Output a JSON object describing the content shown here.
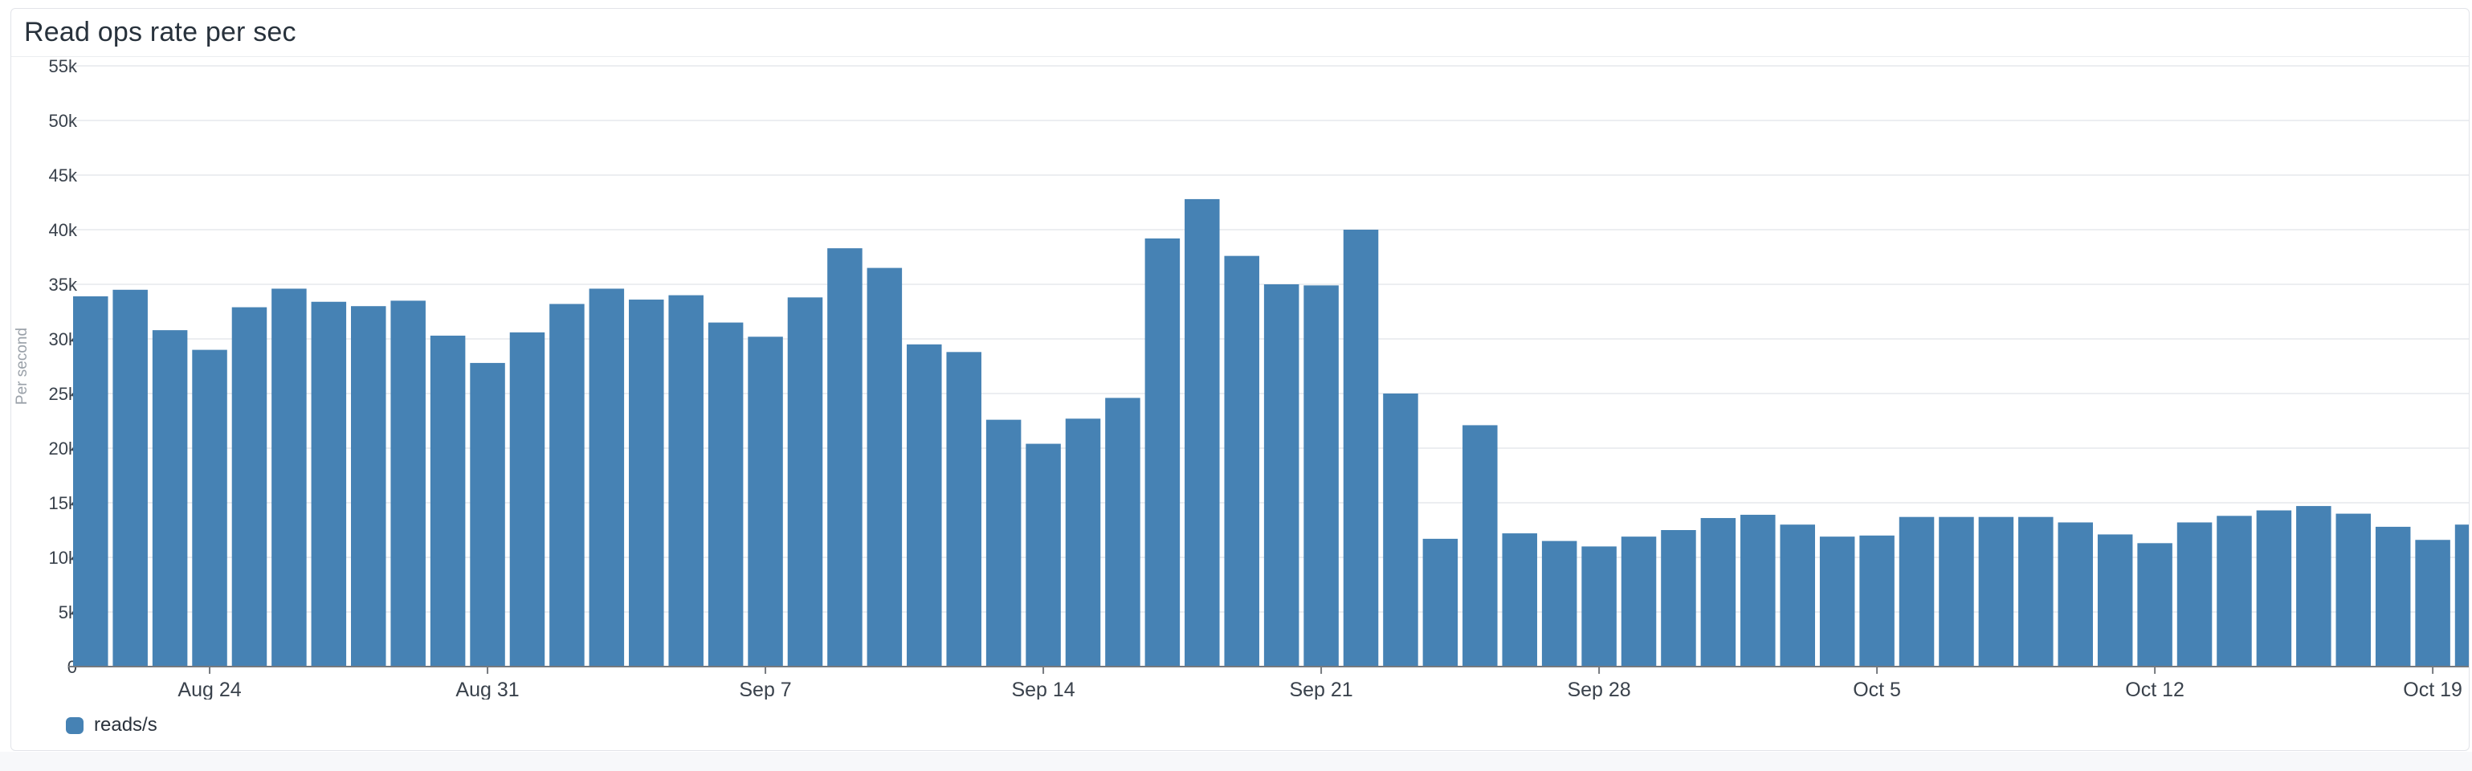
{
  "panel": {
    "title": "Read ops rate per sec"
  },
  "legend": {
    "items": [
      {
        "label": "reads/s",
        "color": "#4682b4"
      }
    ]
  },
  "colors": {
    "bar": "#4682b4",
    "gridline": "#eceef1",
    "axis_line": "#75797e",
    "tick_label": "#39414b",
    "x_label": "#3a424c",
    "y_axis_title": "#9aa1a9",
    "panel_border": "#e2e4e9",
    "page_background_bottom": "#f7f8fa",
    "panel_background": "#ffffff"
  },
  "chart_data": {
    "type": "bar",
    "title": "Read ops rate per sec",
    "xlabel": "",
    "ylabel": "Per second",
    "ylim": [
      0,
      55000
    ],
    "grid": "horizontal",
    "legend_position": "bottom-left",
    "y_ticks": [
      {
        "label": "55k",
        "value": 55000
      },
      {
        "label": "50k",
        "value": 50000
      },
      {
        "label": "45k",
        "value": 45000
      },
      {
        "label": "40k",
        "value": 40000
      },
      {
        "label": "35k",
        "value": 35000
      },
      {
        "label": "30k",
        "value": 30000
      },
      {
        "label": "25k",
        "value": 25000
      },
      {
        "label": "20k",
        "value": 20000
      },
      {
        "label": "15k",
        "value": 15000
      },
      {
        "label": "10k",
        "value": 10000
      },
      {
        "label": "5k",
        "value": 5000
      },
      {
        "label": "0",
        "value": 0
      }
    ],
    "x_ticks": [
      {
        "label": "Aug 24",
        "bar_index": 3
      },
      {
        "label": "Aug 31",
        "bar_index": 10
      },
      {
        "label": "Sep 7",
        "bar_index": 17
      },
      {
        "label": "Sep 14",
        "bar_index": 24
      },
      {
        "label": "Sep 21",
        "bar_index": 31
      },
      {
        "label": "Sep 28",
        "bar_index": 38
      },
      {
        "label": "Oct 5",
        "bar_index": 45
      },
      {
        "label": "Oct 12",
        "bar_index": 52
      },
      {
        "label": "Oct 19",
        "bar_index": 59
      }
    ],
    "series": [
      {
        "name": "reads/s",
        "color": "#4682b4",
        "values_per_sec": [
          33900,
          34500,
          30800,
          29000,
          32900,
          34600,
          33400,
          33000,
          33500,
          30300,
          27800,
          30600,
          33200,
          34600,
          33600,
          34000,
          31500,
          30200,
          33800,
          38300,
          36500,
          29500,
          28800,
          22600,
          20400,
          22700,
          24600,
          39200,
          42800,
          37600,
          35000,
          34900,
          40000,
          25000,
          11700,
          22100,
          12200,
          11500,
          11000,
          11900,
          12500,
          13600,
          13900,
          13000,
          11900,
          12000,
          13700,
          13700,
          13700,
          13700,
          13200,
          12100,
          11300,
          13200,
          13800,
          14300,
          14700,
          14000,
          12800,
          11600,
          13000
        ]
      }
    ]
  }
}
